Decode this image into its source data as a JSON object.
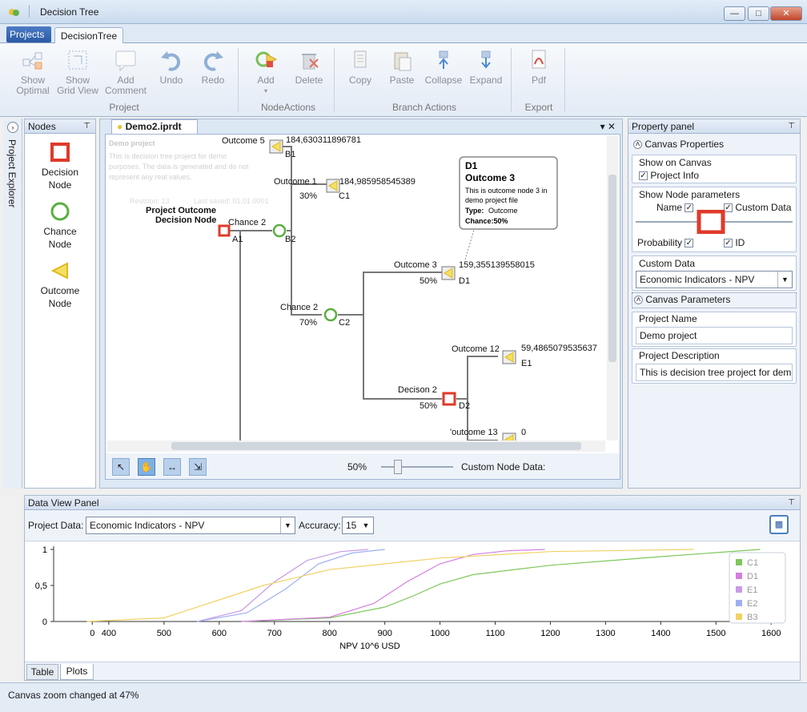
{
  "window": {
    "title": "Decision Tree"
  },
  "ribbon": {
    "projects_menu": "Projects",
    "tab": "DecisionTree",
    "buttons": {
      "show_optimal": [
        "Show",
        "Optimal"
      ],
      "show_grid": [
        "Show",
        "Grid View"
      ],
      "add_comment": [
        "Add",
        "Comment"
      ],
      "undo": "Undo",
      "redo": "Redo",
      "add": "Add",
      "delete": "Delete",
      "copy": "Copy",
      "paste": "Paste",
      "collapse": "Collapse",
      "expand": "Expand",
      "pdf": "Pdf"
    },
    "groups": {
      "project": "Project",
      "node_actions": "NodeActions",
      "branch_actions": "Branch Actions",
      "export": "Export"
    }
  },
  "project_explorer": {
    "label": "Project Explorer"
  },
  "nodes_panel": {
    "title": "Nodes",
    "items": [
      {
        "label": [
          "Decision",
          "Node"
        ]
      },
      {
        "label": [
          "Chance",
          "Node"
        ]
      },
      {
        "label": [
          "Outcome",
          "Node"
        ]
      }
    ]
  },
  "document": {
    "tab": "Demo2.iprdt",
    "info_card": {
      "title": "Demo project",
      "text": [
        "This is decision tree project for demo",
        "purposes. The data is generated and do not",
        "represent any real values."
      ],
      "revision": "Revision: 13",
      "last_saved": "Last saved: 01.01.0001"
    },
    "nodes": {
      "a1": {
        "name": "Chance 2",
        "id": "A1"
      },
      "decision_label": [
        "Project Outcome",
        "Decision Node"
      ],
      "b1": {
        "name": "Outcome 5",
        "value": "184,630311896781",
        "id": "B1"
      },
      "b2": {
        "id": "B2"
      },
      "c1": {
        "name": "Outcome 1",
        "value": "184,985958545389",
        "chance": "30%",
        "id": "C1"
      },
      "c2": {
        "name": "Chance 2",
        "chance": "70%",
        "id": "C2"
      },
      "d1": {
        "name": "Outcome 3",
        "value": "159,355139558015",
        "chance": "50%",
        "id": "D1"
      },
      "d2": {
        "name": "Decison 2",
        "chance": "50%",
        "id": "D2"
      },
      "e1": {
        "name": "Outcome 12",
        "value": "59,4865079535637",
        "id": "E1"
      },
      "e2": {
        "name": "'outcome 13",
        "value": "0"
      }
    },
    "tooltip": {
      "id": "D1",
      "name": "Outcome 3",
      "desc": [
        "This is outcome node 3 in",
        "demo project file"
      ],
      "type_label": "Type:",
      "type_value": "Outcome",
      "chance": "Chance:50%"
    },
    "zoom": "50%",
    "custom_node_data": "Custom Node Data:"
  },
  "property_panel": {
    "title": "Property panel",
    "canvas_properties": "Canvas Properties",
    "show_on_canvas": "Show on Canvas",
    "project_info": "Project Info",
    "show_node_parameters": "Show Node parameters",
    "name": "Name",
    "custom_data_cb": "Custom Data",
    "probability": "Probability",
    "id": "ID",
    "custom_data_label": "Custom Data",
    "custom_data_value": "Economic Indicators - NPV",
    "canvas_parameters": "Canvas Parameters",
    "project_name_label": "Project Name",
    "project_name_value": "Demo project",
    "project_desc_label": "Project Description",
    "project_desc_value": "This is decision tree project for dem"
  },
  "data_view": {
    "title": "Data View Panel",
    "project_data_label": "Project Data:",
    "project_data_value": "Economic Indicators - NPV",
    "accuracy_label": "Accuracy:",
    "accuracy_value": "15",
    "tabs": [
      "Table",
      "Plots"
    ]
  },
  "status": {
    "text": "Canvas zoom changed at 47%"
  },
  "chart_data": {
    "type": "line",
    "xlabel": "NPV 10^6 USD",
    "ylabel": "",
    "xlim": [
      300,
      1620
    ],
    "ylim": [
      0,
      1
    ],
    "x_ticks": [
      "0",
      "400",
      "500",
      "600",
      "700",
      "800",
      "900",
      "1000",
      "1100",
      "1200",
      "1300",
      "1400",
      "1500",
      "1600"
    ],
    "y_ticks": [
      "0",
      "0,5",
      "1"
    ],
    "legend_position": "right",
    "series": [
      {
        "name": "C1",
        "color": "#7dc85a",
        "x": [
          640,
          800,
          900,
          950,
          1000,
          1060,
          1200,
          1400,
          1580
        ],
        "y": [
          0,
          0.05,
          0.2,
          0.35,
          0.52,
          0.65,
          0.78,
          0.9,
          1.0
        ]
      },
      {
        "name": "D1",
        "color": "#d47ee0",
        "x": [
          640,
          800,
          880,
          940,
          1000,
          1060,
          1120,
          1190
        ],
        "y": [
          0,
          0.06,
          0.25,
          0.55,
          0.8,
          0.93,
          0.98,
          1.0
        ]
      },
      {
        "name": "E1",
        "color": "#c89ae6",
        "x": [
          560,
          640,
          700,
          760,
          820,
          870
        ],
        "y": [
          0,
          0.15,
          0.55,
          0.85,
          0.97,
          1.0
        ]
      },
      {
        "name": "E2",
        "color": "#9fb0f0",
        "x": [
          560,
          650,
          720,
          780,
          840,
          900
        ],
        "y": [
          0,
          0.12,
          0.45,
          0.8,
          0.95,
          1.0
        ]
      },
      {
        "name": "B3",
        "color": "#f0d264",
        "x": [
          360,
          500,
          600,
          680,
          800,
          1000,
          1200,
          1460
        ],
        "y": [
          0,
          0.05,
          0.3,
          0.5,
          0.72,
          0.88,
          0.97,
          1.0
        ]
      }
    ]
  }
}
